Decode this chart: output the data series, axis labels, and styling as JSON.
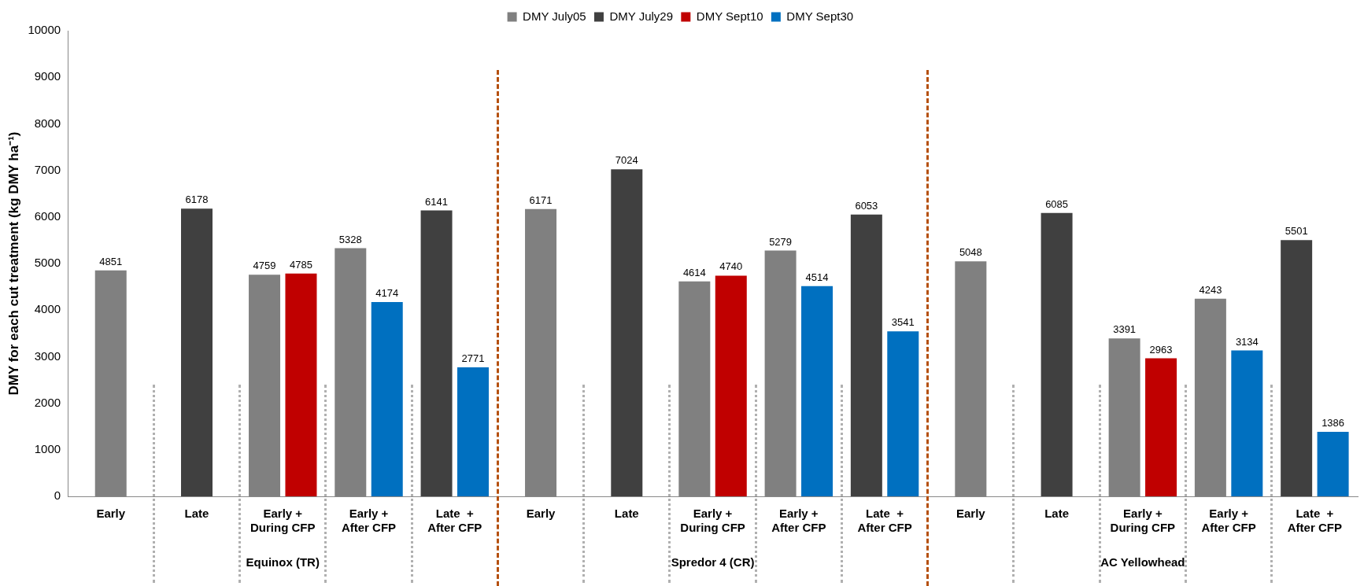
{
  "chart_data": {
    "type": "bar",
    "ylabel": "DMY for each cut treatment (kg DMY ha⁻¹)",
    "categories": [
      "Early",
      "Late",
      "Early +\nDuring CFP",
      "Early +\nAfter CFP",
      "Late  +\nAfter CFP",
      "Early",
      "Late",
      "Early +\nDuring CFP",
      "Early +\nAfter CFP",
      "Late  +\nAfter CFP",
      "Early",
      "Late",
      "Early +\nDuring CFP",
      "Early +\nAfter CFP",
      "Late  +\nAfter CFP"
    ],
    "series": [
      {
        "name": "DMY July05",
        "color": "#808080",
        "values": [
          4851,
          null,
          4759,
          5328,
          null,
          6171,
          null,
          4614,
          5279,
          null,
          5048,
          null,
          3391,
          4243,
          null
        ]
      },
      {
        "name": "DMY July29",
        "color": "#404040",
        "values": [
          null,
          6178,
          null,
          null,
          6141,
          null,
          7024,
          null,
          null,
          6053,
          null,
          6085,
          null,
          null,
          5501
        ]
      },
      {
        "name": "DMY Sept10",
        "color": "#c00000",
        "values": [
          null,
          null,
          4785,
          null,
          null,
          null,
          null,
          4740,
          null,
          null,
          null,
          null,
          2963,
          null,
          null
        ]
      },
      {
        "name": "DMY Sept30",
        "color": "#0070c0",
        "values": [
          null,
          null,
          null,
          4174,
          2771,
          null,
          null,
          null,
          4514,
          3541,
          null,
          null,
          null,
          3134,
          1386
        ]
      }
    ],
    "annotations": [
      "Equinox (TR)",
      "Spredor 4 (CR)",
      "AC Yellowhead"
    ],
    "ylim": [
      0,
      10000
    ],
    "yticks": [
      0,
      1000,
      2000,
      3000,
      4000,
      5000,
      6000,
      7000,
      8000,
      9000,
      10000
    ],
    "grid": false,
    "legend": "top",
    "data_labels": true
  }
}
